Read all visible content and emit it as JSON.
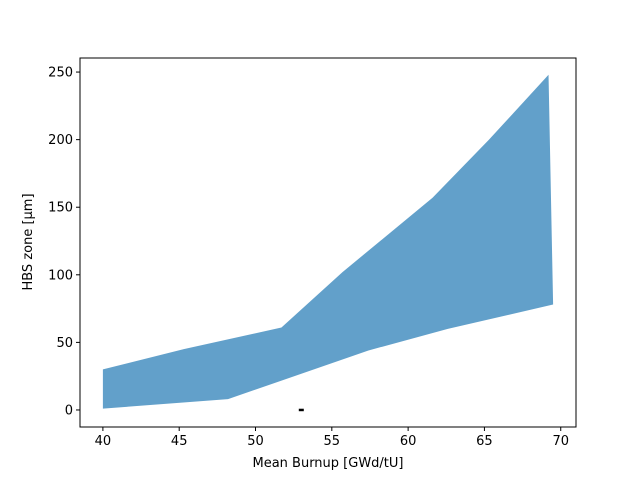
{
  "chart_data": {
    "type": "area_polygon",
    "xlabel": "Mean Burnup [GWd/tU]",
    "ylabel": "HBS zone [μm]",
    "upper": {
      "x": [
        40,
        45.3,
        51.7,
        55.7,
        61.6,
        65.3,
        69.2
      ],
      "values": [
        30,
        45,
        61,
        102,
        157,
        200,
        248
      ]
    },
    "lower": {
      "x": [
        40,
        48.2,
        57.4,
        62.6,
        69.5
      ],
      "values": [
        1,
        8,
        44,
        60,
        78
      ]
    },
    "marker": {
      "x": [
        53
      ],
      "values": [
        0
      ]
    },
    "color": "#1f77b4",
    "alpha": 0.7,
    "xlim": [
      38.5,
      71
    ],
    "ylim": [
      -12.6,
      260.4
    ],
    "xticks": [
      40,
      45,
      50,
      55,
      60,
      65,
      70
    ],
    "yticks": [
      0,
      50,
      100,
      150,
      200,
      250
    ]
  }
}
